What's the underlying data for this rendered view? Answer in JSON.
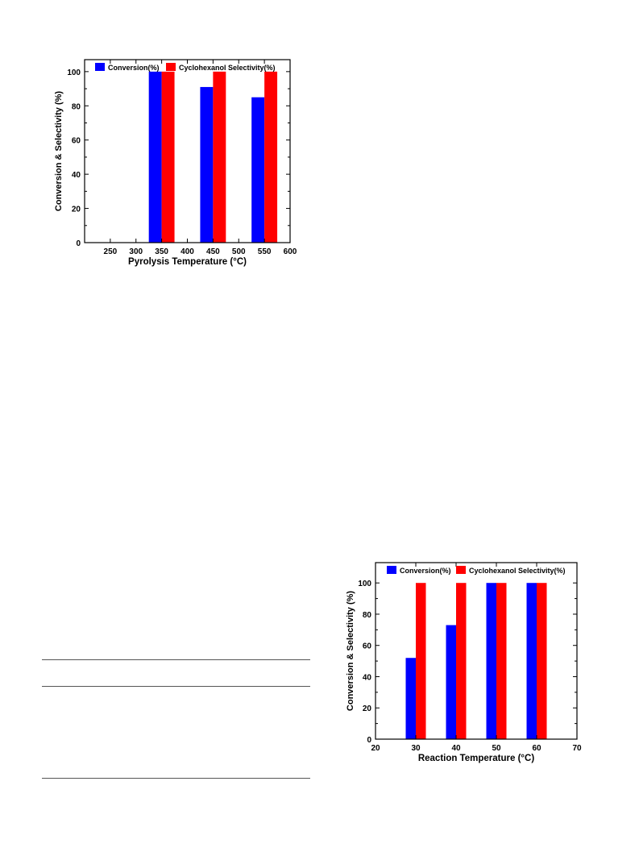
{
  "charts": [
    {
      "type": "bar",
      "xlabel": "Pyrolysis Temperature (°C)",
      "ylabel": "Conversion & Selectivity (%)",
      "xlim": [
        200,
        600
      ],
      "ylim": [
        0,
        107
      ],
      "xticks": [
        250,
        300,
        350,
        400,
        450,
        500,
        550,
        600
      ],
      "yticks": [
        0,
        20,
        40,
        60,
        80,
        100
      ],
      "bar_width": 25,
      "legend_position": "top",
      "series": [
        {
          "name": "Conversion(%)",
          "color": "#0000ff",
          "x": [
            350,
            450,
            550
          ],
          "values": [
            100,
            91,
            85
          ]
        },
        {
          "name": "Cyclohexanol Selectivity(%)",
          "color": "#ff0000",
          "x": [
            350,
            450,
            550
          ],
          "values": [
            100,
            100,
            100
          ]
        }
      ]
    },
    {
      "type": "bar",
      "xlabel": "Reaction Temperature (°C)",
      "ylabel": "Conversion & Selectivity (%)",
      "xlim": [
        20,
        70
      ],
      "ylim": [
        0,
        113
      ],
      "xticks": [
        20,
        30,
        40,
        50,
        60,
        70
      ],
      "yticks": [
        0,
        20,
        40,
        60,
        80,
        100
      ],
      "bar_width": 2.5,
      "legend_position": "top",
      "series": [
        {
          "name": "Conversion(%)",
          "color": "#0000ff",
          "x": [
            30,
            40,
            50,
            60
          ],
          "values": [
            52,
            73,
            100,
            100
          ]
        },
        {
          "name": "Cyclohexanol Selectivity(%)",
          "color": "#ff0000",
          "x": [
            30,
            40,
            50,
            60
          ],
          "values": [
            100,
            100,
            100,
            100
          ]
        }
      ]
    }
  ]
}
